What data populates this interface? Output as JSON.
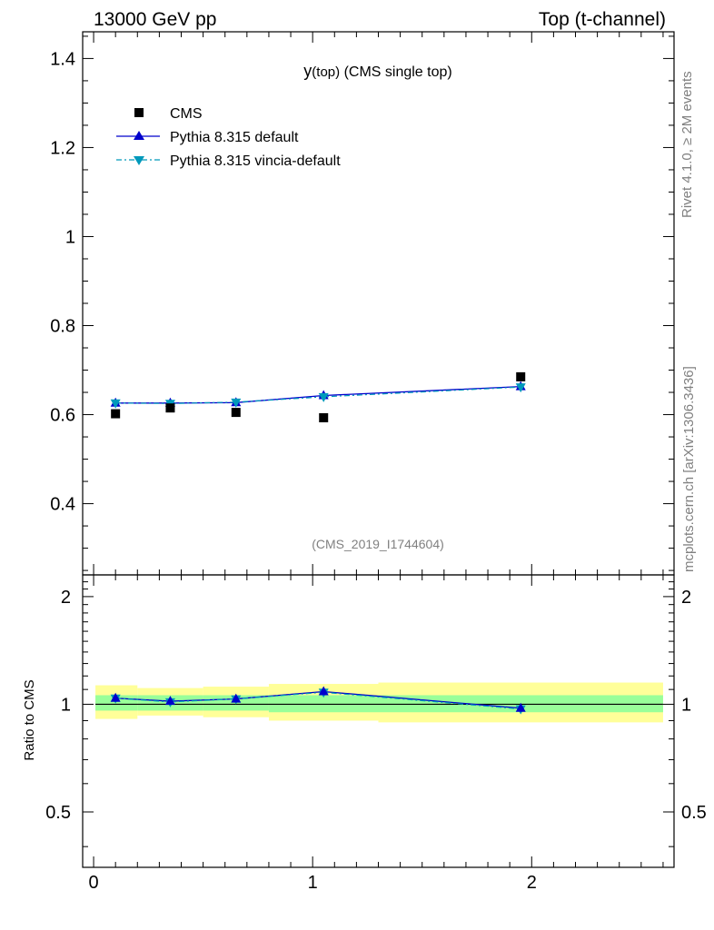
{
  "header": {
    "left": "13000 GeV pp",
    "right": "Top (t-channel)"
  },
  "side_labels": {
    "rivet": "Rivet 4.1.0, ≥ 2M events",
    "mcplots": "mcplots.cern.ch [arXiv:1306.3436]"
  },
  "colors": {
    "cms": "#000000",
    "pythia_default": "#0000cc",
    "pythia_vincia": "#0099bb",
    "band_inner": "#99ff99",
    "band_outer": "#ffff99"
  },
  "chart_data": [
    {
      "type": "scatter",
      "panel": "main",
      "title_main": "y",
      "title_sub": "(top)",
      "title_rest": " (CMS single top)",
      "watermark": "(CMS_2019_I1744604)",
      "xlim": [
        -0.05,
        2.65
      ],
      "ylim": [
        0.24,
        1.46
      ],
      "yticks": [
        0.4,
        0.6,
        0.8,
        1.0,
        1.2,
        1.4
      ],
      "ytick_labels": [
        "0.4",
        "0.6",
        "0.8",
        "1",
        "1.2",
        "1.4"
      ],
      "legend_position": "top-left",
      "legend": [
        "CMS",
        "Pythia 8.315 default",
        "Pythia 8.315 vincia-default"
      ],
      "x": [
        0.1,
        0.35,
        0.65,
        1.05,
        1.95
      ],
      "series": [
        {
          "name": "CMS",
          "values": [
            0.602,
            0.615,
            0.605,
            0.593,
            0.685
          ]
        },
        {
          "name": "Pythia 8.315 default",
          "values": [
            0.626,
            0.626,
            0.627,
            0.643,
            0.663
          ]
        },
        {
          "name": "Pythia 8.315 vincia-default",
          "values": [
            0.626,
            0.625,
            0.628,
            0.64,
            0.662
          ]
        }
      ]
    },
    {
      "type": "line",
      "panel": "ratio",
      "ylabel": "Ratio to CMS",
      "xlim": [
        -0.05,
        2.65
      ],
      "ylim": [
        0.35,
        2.3
      ],
      "yticks": [
        0.5,
        1,
        2
      ],
      "ytick_labels": [
        "0.5",
        "1",
        "2"
      ],
      "xticks": [
        0,
        1,
        2
      ],
      "xtick_labels": [
        "0",
        "1",
        "2"
      ],
      "bins": [
        {
          "lo": 0.0,
          "hi": 0.2,
          "inner": [
            0.96,
            1.06
          ],
          "outer": [
            0.91,
            1.13
          ]
        },
        {
          "lo": 0.2,
          "hi": 0.5,
          "inner": [
            0.96,
            1.06
          ],
          "outer": [
            0.93,
            1.11
          ]
        },
        {
          "lo": 0.5,
          "hi": 0.8,
          "inner": [
            0.96,
            1.06
          ],
          "outer": [
            0.92,
            1.12
          ]
        },
        {
          "lo": 0.8,
          "hi": 1.3,
          "inner": [
            0.95,
            1.06
          ],
          "outer": [
            0.9,
            1.14
          ]
        },
        {
          "lo": 1.3,
          "hi": 2.6,
          "inner": [
            0.95,
            1.06
          ],
          "outer": [
            0.89,
            1.15
          ]
        }
      ],
      "x": [
        0.1,
        0.35,
        0.65,
        1.05,
        1.95
      ],
      "series": [
        {
          "name": "Pythia 8.315 default",
          "values": [
            1.04,
            1.02,
            1.035,
            1.085,
            0.975
          ]
        },
        {
          "name": "Pythia 8.315 vincia-default",
          "values": [
            1.04,
            1.015,
            1.035,
            1.08,
            0.97
          ]
        }
      ]
    }
  ]
}
